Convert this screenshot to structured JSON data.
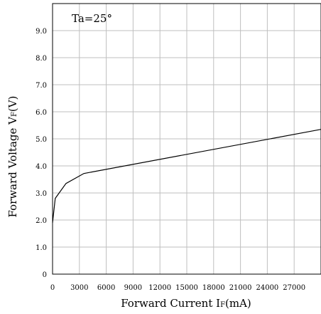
{
  "chart_data": {
    "type": "line",
    "annotation": "Ta=25°",
    "ylabel_prefix": "Forward Voltage V",
    "ylabel_sub": "F",
    "ylabel_suffix": "(V)",
    "xlabel_prefix": "Forward Current I",
    "xlabel_sub": "F",
    "xlabel_suffix": "(mA)",
    "xlim": [
      0,
      30000
    ],
    "ylim": [
      0,
      10
    ],
    "x_ticks": [
      {
        "value": 0,
        "label": "0"
      },
      {
        "value": 3000,
        "label": "3000"
      },
      {
        "value": 6000,
        "label": "6000"
      },
      {
        "value": 9000,
        "label": "9000"
      },
      {
        "value": 12000,
        "label": "12000"
      },
      {
        "value": 15000,
        "label": "15000"
      },
      {
        "value": 18000,
        "label": "18000"
      },
      {
        "value": 21000,
        "label": "21000"
      },
      {
        "value": 24000,
        "label": "24000"
      },
      {
        "value": 27000,
        "label": "27000"
      }
    ],
    "y_ticks": [
      {
        "value": 0,
        "label": "0"
      },
      {
        "value": 1,
        "label": "1.0"
      },
      {
        "value": 2,
        "label": "2.0"
      },
      {
        "value": 3,
        "label": "3.0"
      },
      {
        "value": 4,
        "label": "4.0"
      },
      {
        "value": 5,
        "label": "5.0"
      },
      {
        "value": 6,
        "label": "6.0"
      },
      {
        "value": 7,
        "label": "7.0"
      },
      {
        "value": 8,
        "label": "8.0"
      },
      {
        "value": 9,
        "label": "9.0"
      }
    ],
    "grid": true,
    "series": [
      {
        "x": [
          0,
          300,
          1500,
          3500,
          30000
        ],
        "y": [
          1.9,
          2.8,
          3.35,
          3.72,
          5.35
        ]
      }
    ]
  },
  "colors": {
    "line": "#000000",
    "grid": "#bfbfbf",
    "axis": "#000000"
  }
}
